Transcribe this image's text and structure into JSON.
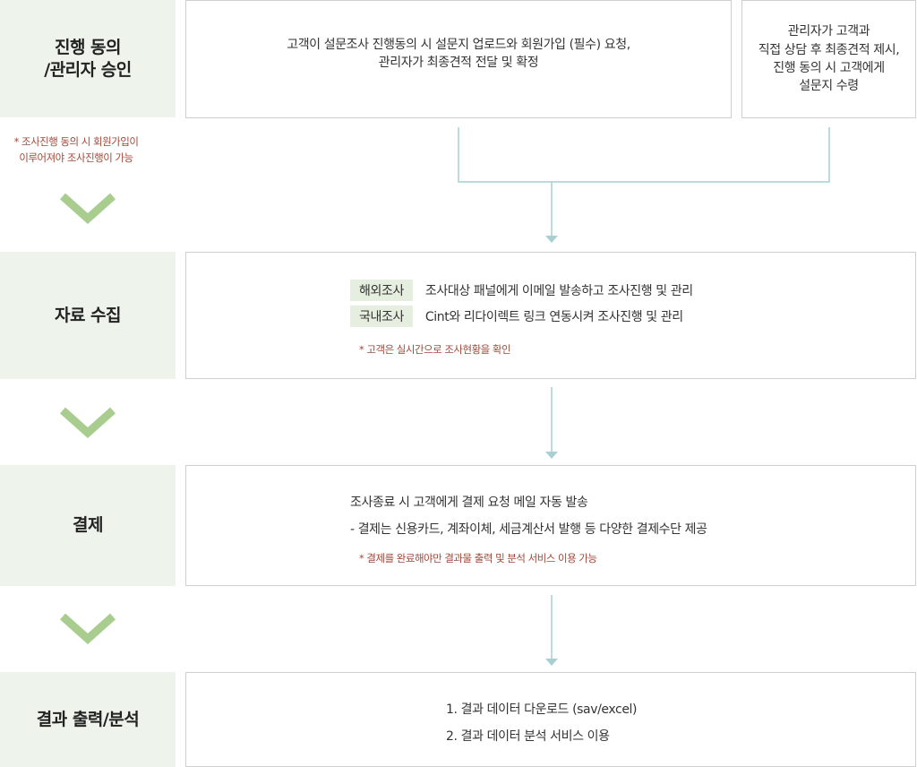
{
  "colors": {
    "stage_bg": "#eef4eb",
    "tag_bg": "#e5eedf",
    "connector": "#a9cfd1",
    "chevron": "#a8cd8e",
    "note": "#a04a3c",
    "border": "#cfcfcf"
  },
  "stages": [
    {
      "label": "진행 동의\n/관리자 승인",
      "box_main": "고객이 설문조사  진행동의 시 설문지  업로드와 회원가입 (필수)  요청,\n관리자가 최종견적  전달 및 확정",
      "box_side": "관리자가 고객과\n직접 상담 후 최종견적 제시,\n진행 동의 시 고객에게\n설문지 수령",
      "note": "* 조사진행 동의 시 회원가입이\n이루어져야 조사진행이 가능"
    },
    {
      "label": "자료 수집",
      "rows": [
        {
          "tag": "해외조사",
          "text": "조사대상 패널에게  이메일 발송하고 조사진행 및 관리"
        },
        {
          "tag": "국내조사",
          "text": "Cint와 리다이렉트 링크 연동시켜 조사진행 및 관리"
        }
      ],
      "note": "* 고객은 실시간으로 조사현황을 확인"
    },
    {
      "label": "결제",
      "lines": [
        "조사종료 시  고객에게 결제 요청  메일 자동 발송",
        "- 결제는 신용카드, 계좌이체, 세금계산서 발행 등 다양한 결제수단  제공"
      ],
      "note": "* 결제를 완료해야만 결과물 출력 및 분석 서비스 이용 가능"
    },
    {
      "label": "결과 출력/분석",
      "lines": [
        "1. 결과 데이터 다운로드 (sav/excel)",
        "2. 결과 데이터 분석 서비스  이용"
      ]
    }
  ]
}
